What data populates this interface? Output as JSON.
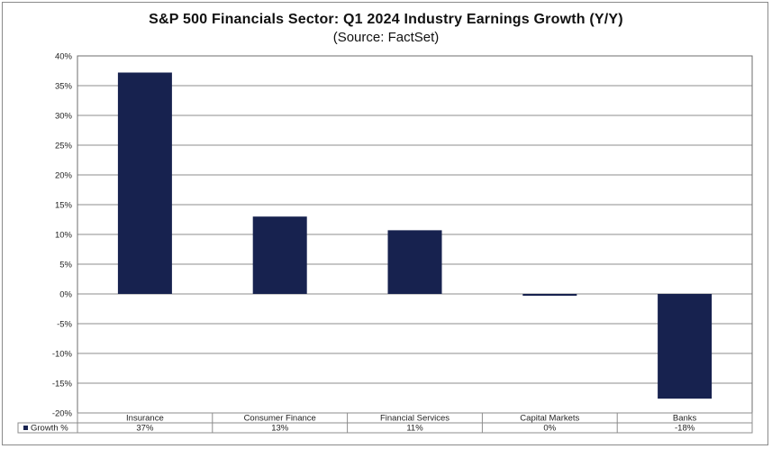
{
  "chart_data": {
    "type": "bar",
    "title": "S&P 500 Financials Sector: Q1 2024 Industry Earnings Growth (Y/Y)",
    "subtitle": "(Source: FactSet)",
    "categories": [
      "Insurance",
      "Consumer Finance",
      "Financial Services",
      "Capital Markets",
      "Banks"
    ],
    "series": [
      {
        "name": "Growth %",
        "values": [
          37.2,
          13.0,
          10.7,
          -0.2,
          -17.6
        ],
        "table_labels": [
          "37%",
          "13%",
          "11%",
          "0%",
          "-18%"
        ]
      }
    ],
    "ylim": [
      -20,
      40
    ],
    "yticks": [
      40,
      35,
      30,
      25,
      20,
      15,
      10,
      5,
      0,
      -5,
      -10,
      -15,
      -20
    ],
    "ytick_labels": [
      "40%",
      "35%",
      "30%",
      "25%",
      "20%",
      "15%",
      "10%",
      "5%",
      "0%",
      "-5%",
      "-10%",
      "-15%",
      "-20%"
    ],
    "xlabel": "",
    "ylabel": "",
    "grid": true,
    "legend": "data-table-bottom",
    "bar_color": "#17224f"
  }
}
